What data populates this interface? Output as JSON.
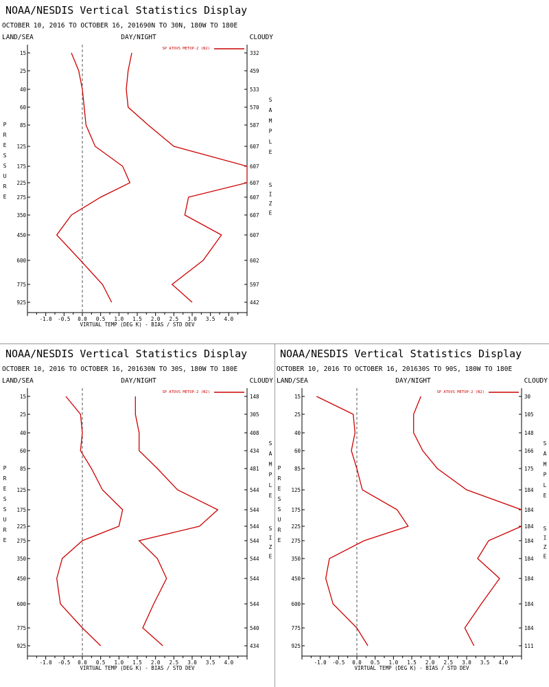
{
  "header": {
    "title": "NOAA/NESDIS Vertical Statistics Display",
    "row_left": "LAND/SEA",
    "row_center": "DAY/NIGHT",
    "row_right": "CLOUDY"
  },
  "y_left_label": "PRESSURE",
  "y_right_label": "SAMPLE SIZE",
  "x_axis_label": "VIRTUAL TEMP (DEG K) - BIAS / STD DEV",
  "colors": {
    "series": "#cc0000",
    "axis": "#000000",
    "zero_line": "#555555"
  },
  "chart_data": [
    {
      "type": "line",
      "subtitle": "OCTOBER 10, 2016 TO OCTOBER 16, 201690N TO 30N, 180W TO 180E",
      "legend": "SP ATOVS METOP-2 (N2)",
      "pressure_levels": [
        "15",
        "25",
        "40",
        "60",
        "85",
        "125",
        "175",
        "225",
        "275",
        "350",
        "450",
        "600",
        "775",
        "925"
      ],
      "sample_size": [
        "332",
        "459",
        "533",
        "570",
        "587",
        "607",
        "607",
        "607",
        "607",
        "607",
        "607",
        "602",
        "597",
        "442"
      ],
      "xlim": [
        -1.5,
        4.5
      ],
      "x_ticks": [
        "-1.0",
        "-0.5",
        "0.0",
        "0.5",
        "1.0",
        "1.5",
        "2.0",
        "2.5",
        "3.0",
        "3.5",
        "4.0"
      ],
      "series": [
        {
          "values": [
            -0.3,
            -0.1,
            0.0,
            0.05,
            0.1,
            0.35,
            1.1,
            1.3,
            0.5,
            -0.3,
            -0.7,
            -0.05,
            0.55,
            0.8
          ]
        },
        {
          "values": [
            1.35,
            1.25,
            1.2,
            1.25,
            1.8,
            2.5,
            4.5,
            4.5,
            2.9,
            2.8,
            3.8,
            3.3,
            2.45,
            3.0
          ]
        }
      ]
    },
    {
      "type": "line",
      "subtitle": "OCTOBER 10, 2016 TO OCTOBER 16, 201630N TO 30S, 180W TO 180E",
      "legend": "SP ATOVS METOP-2 (N2)",
      "pressure_levels": [
        "15",
        "25",
        "40",
        "60",
        "85",
        "125",
        "175",
        "225",
        "275",
        "350",
        "450",
        "600",
        "775",
        "925"
      ],
      "sample_size": [
        "148",
        "305",
        "408",
        "434",
        "481",
        "544",
        "544",
        "544",
        "544",
        "544",
        "544",
        "544",
        "540",
        "434"
      ],
      "xlim": [
        -1.5,
        4.5
      ],
      "x_ticks": [
        "-1.0",
        "-0.5",
        "0.0",
        "0.5",
        "1.0",
        "1.5",
        "2.0",
        "2.5",
        "3.0",
        "3.5",
        "4.0"
      ],
      "series": [
        {
          "values": [
            -0.45,
            -0.05,
            0.0,
            -0.05,
            0.25,
            0.55,
            1.1,
            1.0,
            0.0,
            -0.55,
            -0.7,
            -0.6,
            0.0,
            0.5
          ]
        },
        {
          "values": [
            1.45,
            1.45,
            1.55,
            1.55,
            2.05,
            2.6,
            3.7,
            3.2,
            1.55,
            2.05,
            2.3,
            1.95,
            1.65,
            2.2
          ]
        }
      ]
    },
    {
      "type": "line",
      "subtitle": "OCTOBER 10, 2016 TO OCTOBER 16, 201630S TO 90S, 180W TO 180E",
      "legend": "SP ATOVS METOP-2 (N2)",
      "pressure_levels": [
        "15",
        "25",
        "40",
        "60",
        "85",
        "125",
        "175",
        "225",
        "275",
        "350",
        "450",
        "600",
        "775",
        "925"
      ],
      "sample_size": [
        "30",
        "105",
        "148",
        "166",
        "175",
        "184",
        "184",
        "184",
        "184",
        "184",
        "184",
        "184",
        "184",
        "111"
      ],
      "xlim": [
        -1.5,
        4.5
      ],
      "x_ticks": [
        "-1.0",
        "-0.5",
        "0.0",
        "0.5",
        "1.0",
        "1.5",
        "2.0",
        "2.5",
        "3.0",
        "3.5",
        "4.0"
      ],
      "series": [
        {
          "values": [
            -1.1,
            -0.1,
            -0.05,
            -0.15,
            0.0,
            0.15,
            1.1,
            1.4,
            0.2,
            -0.75,
            -0.85,
            -0.65,
            0.0,
            0.3
          ]
        },
        {
          "values": [
            1.75,
            1.55,
            1.55,
            1.8,
            2.2,
            3.0,
            4.5,
            4.5,
            3.6,
            3.3,
            3.9,
            3.4,
            2.95,
            3.2
          ]
        }
      ]
    }
  ]
}
